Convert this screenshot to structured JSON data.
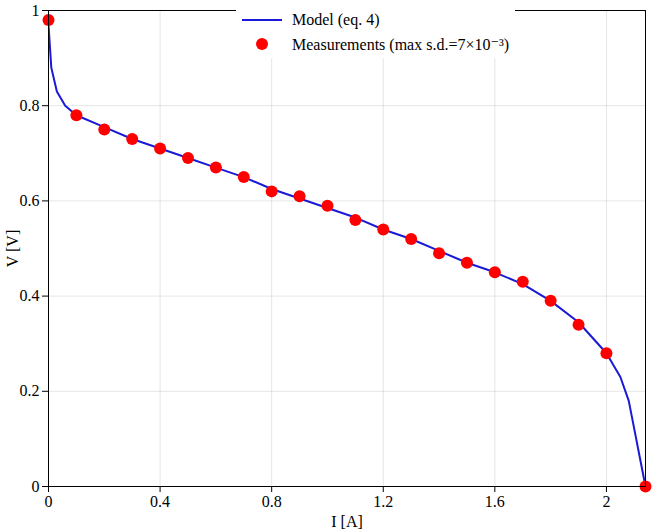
{
  "chart_data": {
    "type": "line",
    "x_label": "I [A]",
    "y_label": "V [V]",
    "xlim": [
      0,
      2.14
    ],
    "ylim": [
      0,
      1
    ],
    "xticks": [
      0,
      0.4,
      0.8,
      1.2,
      1.6,
      2
    ],
    "yticks": [
      0,
      0.2,
      0.4,
      0.6,
      0.8,
      1
    ],
    "grid": true,
    "legend": "top",
    "series": [
      {
        "name": "Model (eq. 4)",
        "type": "line",
        "color": "#1a1ad6",
        "line_style": "solid",
        "x": [
          0,
          0.01,
          0.03,
          0.06,
          0.1,
          0.2,
          0.3,
          0.4,
          0.5,
          0.6,
          0.7,
          0.8,
          0.9,
          1.0,
          1.1,
          1.2,
          1.3,
          1.4,
          1.5,
          1.6,
          1.7,
          1.8,
          1.9,
          2.0,
          2.05,
          2.08,
          2.1,
          2.12,
          2.13,
          2.14
        ],
        "values": [
          0.97,
          0.88,
          0.83,
          0.8,
          0.78,
          0.755,
          0.73,
          0.71,
          0.69,
          0.67,
          0.65,
          0.625,
          0.605,
          0.585,
          0.565,
          0.54,
          0.52,
          0.495,
          0.47,
          0.45,
          0.425,
          0.39,
          0.345,
          0.28,
          0.23,
          0.18,
          0.12,
          0.06,
          0.03,
          0
        ]
      },
      {
        "name": "Measurements (max s.d.=7×10⁻³)",
        "type": "scatter",
        "color": "#ff0000",
        "marker": "circle",
        "x": [
          0,
          0.1,
          0.2,
          0.3,
          0.4,
          0.5,
          0.6,
          0.7,
          0.8,
          0.9,
          1.0,
          1.1,
          1.2,
          1.3,
          1.4,
          1.5,
          1.6,
          1.7,
          1.8,
          1.9,
          2.0,
          2.14
        ],
        "values": [
          0.98,
          0.78,
          0.75,
          0.73,
          0.71,
          0.69,
          0.67,
          0.65,
          0.62,
          0.61,
          0.59,
          0.56,
          0.54,
          0.52,
          0.49,
          0.47,
          0.45,
          0.43,
          0.39,
          0.34,
          0.28,
          0
        ]
      }
    ]
  }
}
